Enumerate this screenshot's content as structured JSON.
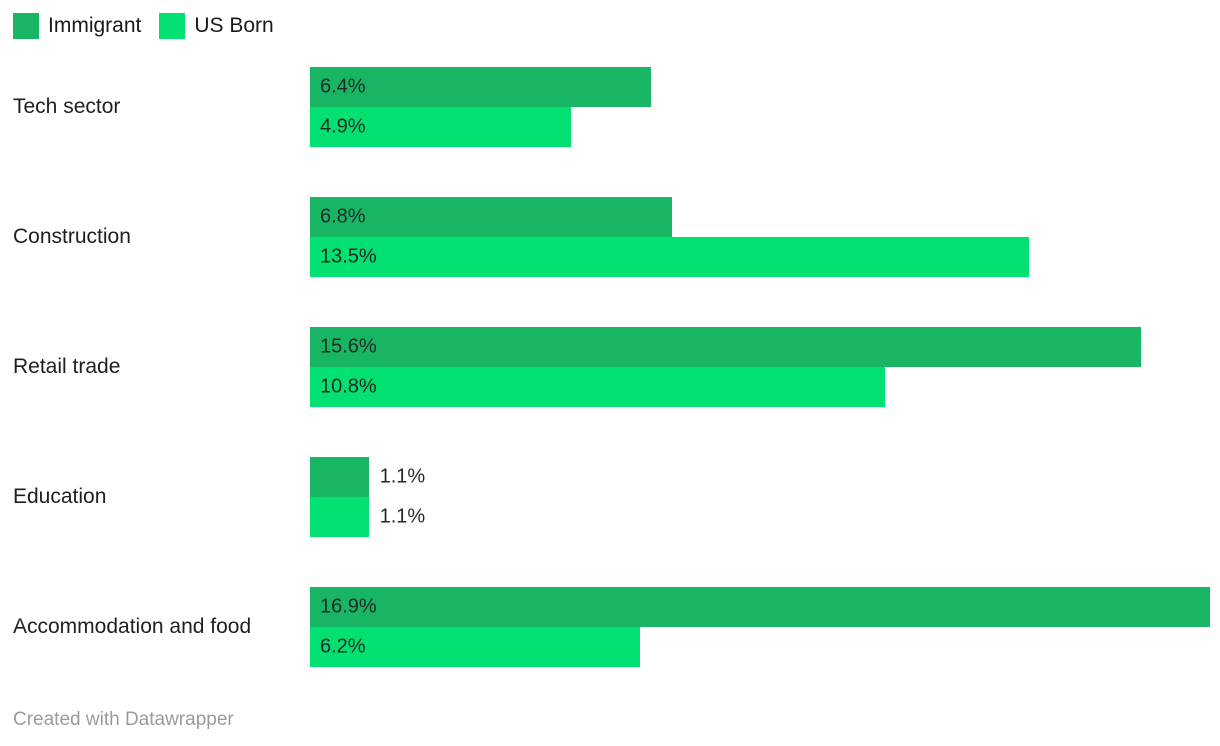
{
  "chart_data": {
    "type": "bar",
    "orientation": "horizontal",
    "grouped": true,
    "categories": [
      "Tech sector",
      "Construction",
      "Retail trade",
      "Education",
      "Accommodation and food"
    ],
    "series": [
      {
        "name": "Immigrant",
        "color": "#18b565",
        "values": [
          6.4,
          6.8,
          15.6,
          1.1,
          16.9
        ],
        "labels": [
          "6.4%",
          "6.8%",
          "15.6%",
          "1.1%",
          "16.9%"
        ]
      },
      {
        "name": "US Born",
        "color": "#02e072",
        "values": [
          4.9,
          13.5,
          10.8,
          1.1,
          6.2
        ],
        "labels": [
          "4.9%",
          "13.5%",
          "10.8%",
          "1.1%",
          "6.2%"
        ]
      }
    ],
    "title": "",
    "xlabel": "",
    "ylabel": "",
    "xlim": [
      0,
      16.9
    ],
    "grid": false,
    "legend_position": "top-left",
    "value_suffix": "%",
    "value_label_placement": "inside-start, outside for short bars"
  },
  "footer": {
    "text": "Created with Datawrapper"
  },
  "colors": {
    "background": "#ffffff",
    "category_label": "#1f1f1f",
    "value_label": "#1e2a22",
    "footer_text": "#9b9b9b"
  }
}
